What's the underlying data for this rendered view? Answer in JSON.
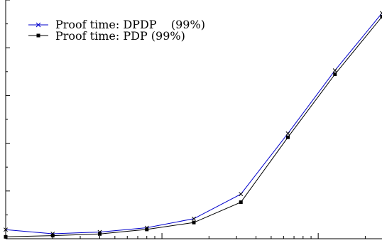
{
  "chart_data": {
    "type": "line",
    "title": "",
    "xlabel": "",
    "ylabel": "",
    "x_scale": "log",
    "x": [
      1,
      2,
      4,
      8,
      16,
      32,
      64,
      128,
      256
    ],
    "xlim": [
      1,
      256
    ],
    "ylim": [
      0,
      100
    ],
    "grid": false,
    "legend_position": "top-left",
    "series": [
      {
        "name": "Proof time: DPDP    (99%)",
        "color": "#0000cc",
        "marker": "x",
        "values": [
          3.8,
          2.1,
          2.8,
          4.6,
          8.4,
          18.7,
          44.1,
          70.5,
          94.5
        ]
      },
      {
        "name": "Proof time: PDP (99%)",
        "color": "#000000",
        "marker": "square",
        "values": [
          0.8,
          1.3,
          2.0,
          3.9,
          6.8,
          15.3,
          42.5,
          68.9,
          93.0
        ]
      }
    ]
  }
}
